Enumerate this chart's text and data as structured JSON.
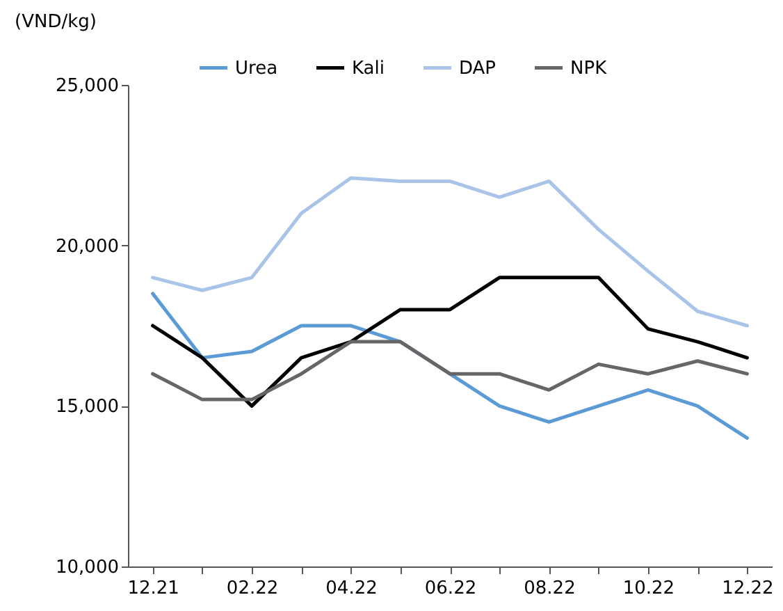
{
  "chart_data": {
    "type": "line",
    "ylabel": "(VND/kg)",
    "categories": [
      "12.21",
      null,
      "02.22",
      null,
      "04.22",
      null,
      "06.22",
      null,
      "08.22",
      null,
      "10.22",
      null,
      "12.22"
    ],
    "series": [
      {
        "name": "Urea",
        "color": "#5b9bd5",
        "values": [
          18500,
          16500,
          16700,
          17500,
          17500,
          17000,
          16000,
          15000,
          14500,
          15000,
          15500,
          15000,
          14000
        ]
      },
      {
        "name": "Kali",
        "color": "#000000",
        "values": [
          17500,
          16500,
          15000,
          16500,
          17000,
          18000,
          18000,
          19000,
          19000,
          19000,
          17400,
          17000,
          16500
        ]
      },
      {
        "name": "DAP",
        "color": "#a9c4e8",
        "values": [
          19000,
          18600,
          19000,
          21000,
          22100,
          22000,
          22000,
          21500,
          22000,
          20500,
          19200,
          17950,
          17500
        ]
      },
      {
        "name": "NPK",
        "color": "#666666",
        "values": [
          16000,
          15200,
          15200,
          16000,
          17000,
          17000,
          16000,
          16000,
          15500,
          16300,
          16000,
          16400,
          16000
        ]
      }
    ],
    "ylim": [
      10000,
      25000
    ],
    "yticks": [
      {
        "value": 10000,
        "label": "10,000"
      },
      {
        "value": 15000,
        "label": "15,000"
      },
      {
        "value": 20000,
        "label": "20,000"
      },
      {
        "value": 25000,
        "label": "25,000"
      }
    ],
    "grid": false,
    "legend": "top",
    "line_style": "solid",
    "marker": "none"
  }
}
